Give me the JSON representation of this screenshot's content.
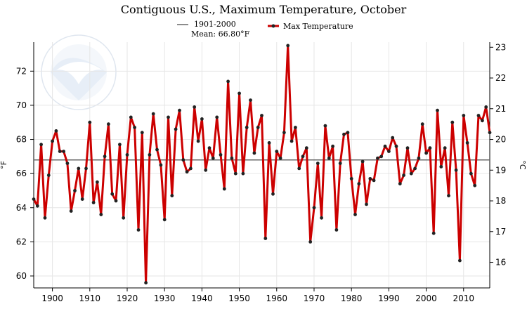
{
  "chart_data": {
    "type": "line",
    "title": "Contiguous U.S., Maximum Temperature, October",
    "xlabel": "",
    "ylabel_left": "°F",
    "ylabel_right": "°C",
    "xlim": [
      1895,
      2017
    ],
    "ylim": [
      59.3,
      73.7
    ],
    "x_ticks": [
      1900,
      1910,
      1920,
      1930,
      1940,
      1950,
      1960,
      1970,
      1980,
      1990,
      2000,
      2010
    ],
    "y_ticks_f": [
      60,
      62,
      64,
      66,
      68,
      70,
      72
    ],
    "y_ticks_c": [
      16,
      17,
      18,
      19,
      20,
      21,
      22,
      23
    ],
    "grid": true,
    "legend": {
      "mean_label_line1": "1901-2000",
      "mean_label_line2": "Mean: 66.80°F",
      "series_label": "Max Temperature"
    },
    "mean_line": {
      "name": "1901-2000 Mean",
      "value": 66.8,
      "color": "#666666"
    },
    "series": [
      {
        "name": "Max Temperature",
        "color": "#cc0000",
        "start_year": 1895,
        "values": [
          64.5,
          64.1,
          67.7,
          63.4,
          65.9,
          67.9,
          68.5,
          67.3,
          67.3,
          66.6,
          63.8,
          65.0,
          66.3,
          64.5,
          66.3,
          69.0,
          64.3,
          65.5,
          63.6,
          67.0,
          68.9,
          64.8,
          64.4,
          67.7,
          63.4,
          67.1,
          69.3,
          68.7,
          62.7,
          68.4,
          59.6,
          67.1,
          69.5,
          67.4,
          66.5,
          63.3,
          69.3,
          64.7,
          68.6,
          69.7,
          66.8,
          66.1,
          66.3,
          69.9,
          67.9,
          69.2,
          66.2,
          67.5,
          66.9,
          69.3,
          67.1,
          65.1,
          71.4,
          66.9,
          66.0,
          70.7,
          66.0,
          68.7,
          70.3,
          67.2,
          68.7,
          69.4,
          62.2,
          67.8,
          64.8,
          67.3,
          66.9,
          68.4,
          73.5,
          67.9,
          68.7,
          66.3,
          67.0,
          67.5,
          62.0,
          64.0,
          66.6,
          63.4,
          68.8,
          66.9,
          67.6,
          62.7,
          66.6,
          68.3,
          68.4,
          65.7,
          63.6,
          65.4,
          66.7,
          64.2,
          65.7,
          65.6,
          66.9,
          67.0,
          67.6,
          67.3,
          68.1,
          67.6,
          65.4,
          65.9,
          67.5,
          66.0,
          66.3,
          66.9,
          68.9,
          67.2,
          67.5,
          62.5,
          69.7,
          66.4,
          67.5,
          64.7,
          69.0,
          66.2,
          60.9,
          69.4,
          67.8,
          66.0,
          65.3,
          69.4,
          69.1,
          69.9,
          68.4
        ]
      }
    ]
  }
}
